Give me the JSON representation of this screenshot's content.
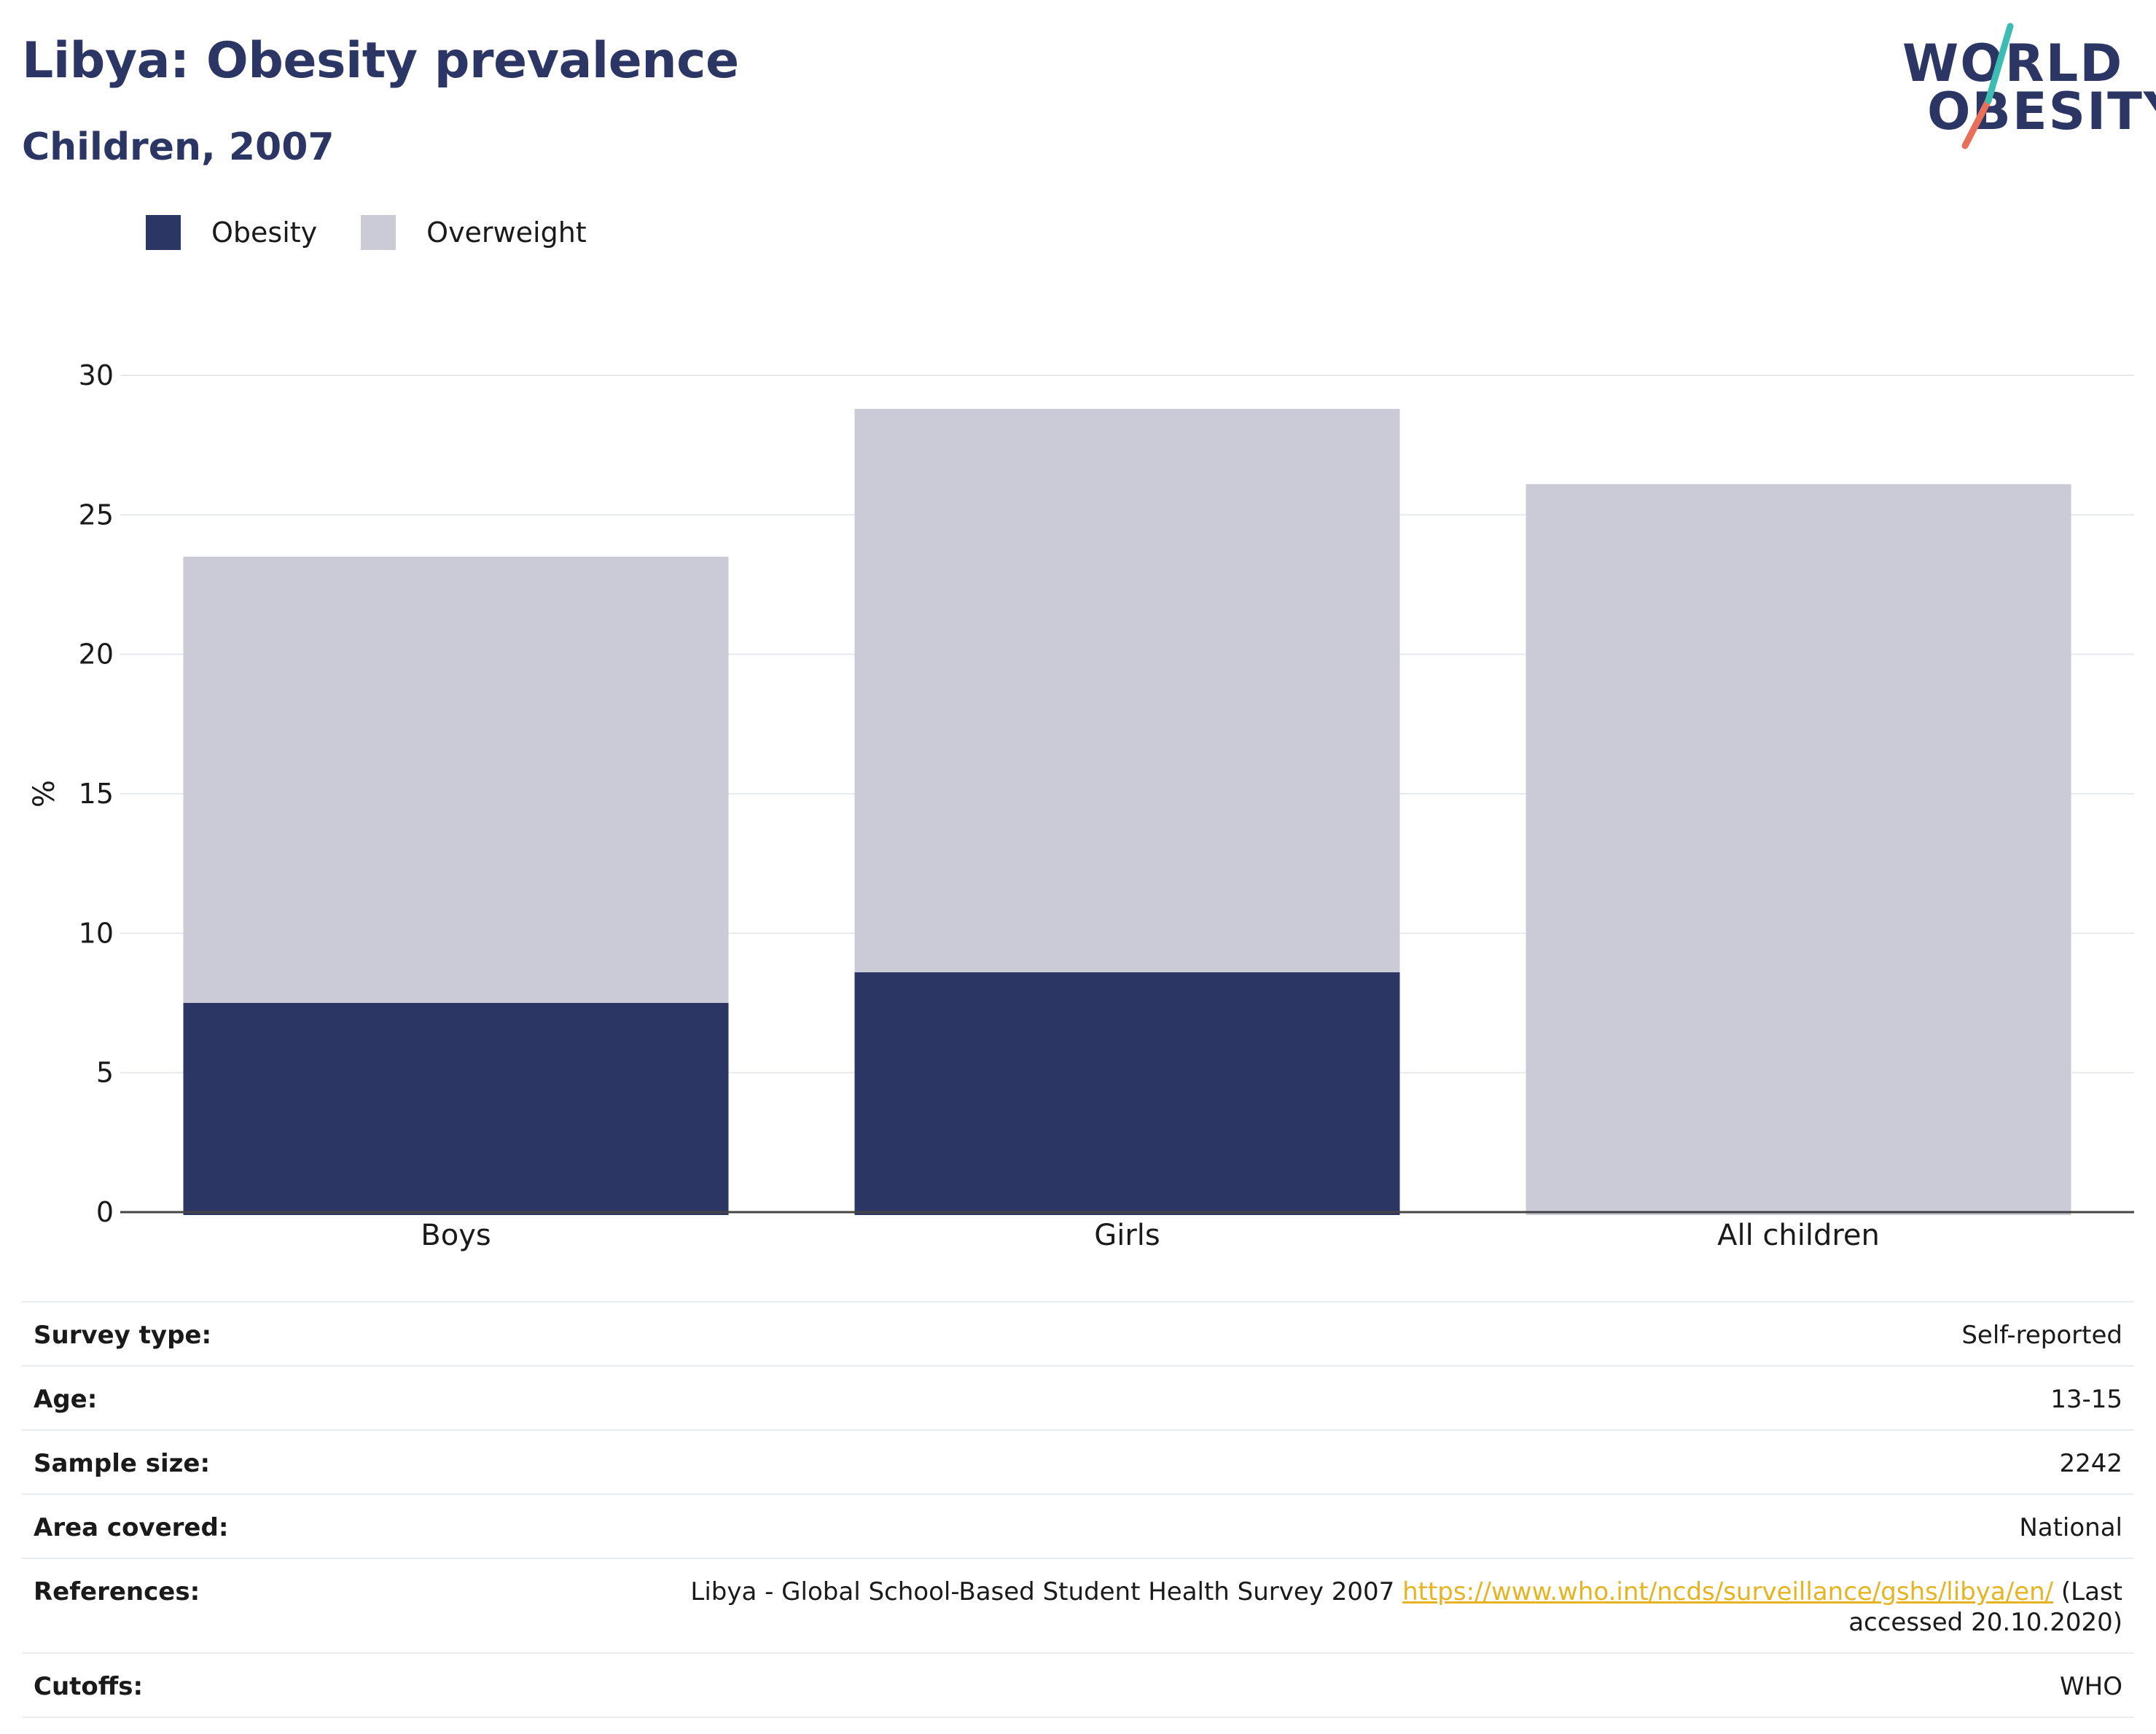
{
  "header": {
    "title": "Libya: Obesity prevalence",
    "subtitle": "Children, 2007"
  },
  "logo": {
    "line1": "WORLD",
    "line2": "OBESITY",
    "accent_teal": "#3dbcb4",
    "accent_coral": "#e8705a"
  },
  "legend": [
    {
      "label": "Obesity",
      "color": "#2b3664"
    },
    {
      "label": "Overweight",
      "color": "#cacbd7"
    }
  ],
  "chart_data": {
    "type": "bar",
    "stacked": true,
    "categories": [
      "Boys",
      "Girls",
      "All children"
    ],
    "series": [
      {
        "name": "Obesity",
        "color": "#2b3664",
        "values": [
          7.5,
          8.6,
          null
        ]
      },
      {
        "name": "Overweight",
        "color": "#cacbd7",
        "values": [
          16.0,
          20.2,
          26.1
        ]
      }
    ],
    "totals": [
      23.5,
      28.8,
      26.1
    ],
    "ylabel": "%",
    "ylim": [
      0,
      30
    ],
    "yticks": [
      0,
      5,
      10,
      15,
      20,
      25,
      30
    ],
    "grid": true,
    "legend_position": "top-left"
  },
  "meta": {
    "rows": [
      {
        "key": "Survey type:",
        "value": "Self-reported"
      },
      {
        "key": "Age:",
        "value": "13-15"
      },
      {
        "key": "Sample size:",
        "value": "2242"
      },
      {
        "key": "Area covered:",
        "value": "National"
      },
      {
        "key": "References:",
        "value_pre": "Libya - Global School-Based Student Health Survey 2007 ",
        "link": "https://www.who.int/ncds/surveillance/gshs/libya/en/",
        "value_post": " (Last accessed 20.10.2020)"
      },
      {
        "key": "Cutoffs:",
        "value": "WHO"
      }
    ]
  }
}
